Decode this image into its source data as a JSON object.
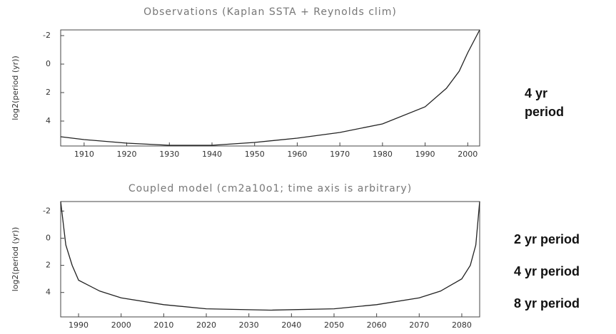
{
  "chart_data": [
    {
      "type": "line",
      "title": "Observations (Kaplan SSTA + Reynolds clim)",
      "y_label": "log2(period (yr))",
      "color": "#222222",
      "x": [
        1904.5,
        1910,
        1920,
        1930,
        1940,
        1950,
        1960,
        1970,
        1980,
        1990,
        1995,
        1998,
        2000,
        2002.8
      ],
      "values": [
        5.1,
        5.3,
        5.55,
        5.7,
        5.7,
        5.5,
        5.2,
        4.8,
        4.2,
        3.0,
        1.7,
        0.5,
        -0.8,
        -2.4
      ],
      "xlim": [
        1904.5,
        2002.8
      ],
      "xticks": [
        1910,
        1920,
        1930,
        1940,
        1950,
        1960,
        1970,
        1980,
        1990,
        2000
      ],
      "ylim": [
        -2.4,
        5.75
      ],
      "yticks": [
        -2,
        0,
        2,
        4
      ],
      "y_inverted": true
    },
    {
      "type": "line",
      "title": "Coupled model (cm2a10o1; time axis is arbitrary)",
      "y_label": "log2(period (yr))",
      "color": "#222222",
      "x": [
        1985.8,
        1987,
        1988.5,
        1990,
        1995,
        2000,
        2010,
        2020,
        2035,
        2050,
        2060,
        2070,
        2075,
        2080,
        2082,
        2083.3,
        2084.2
      ],
      "values": [
        -2.7,
        0.5,
        2.0,
        3.1,
        3.9,
        4.4,
        4.9,
        5.2,
        5.3,
        5.2,
        4.9,
        4.4,
        3.9,
        3.0,
        2.0,
        0.5,
        -2.7
      ],
      "xlim": [
        1985.8,
        2084.2
      ],
      "xticks": [
        1990,
        2000,
        2010,
        2020,
        2030,
        2040,
        2050,
        2060,
        2070,
        2080
      ],
      "ylim": [
        -2.7,
        5.8
      ],
      "yticks": [
        -2,
        0,
        2,
        4
      ],
      "y_inverted": true
    }
  ],
  "annotations": [
    "4 yr",
    "period",
    "2 yr period",
    "4 yr period",
    "8 yr period"
  ]
}
